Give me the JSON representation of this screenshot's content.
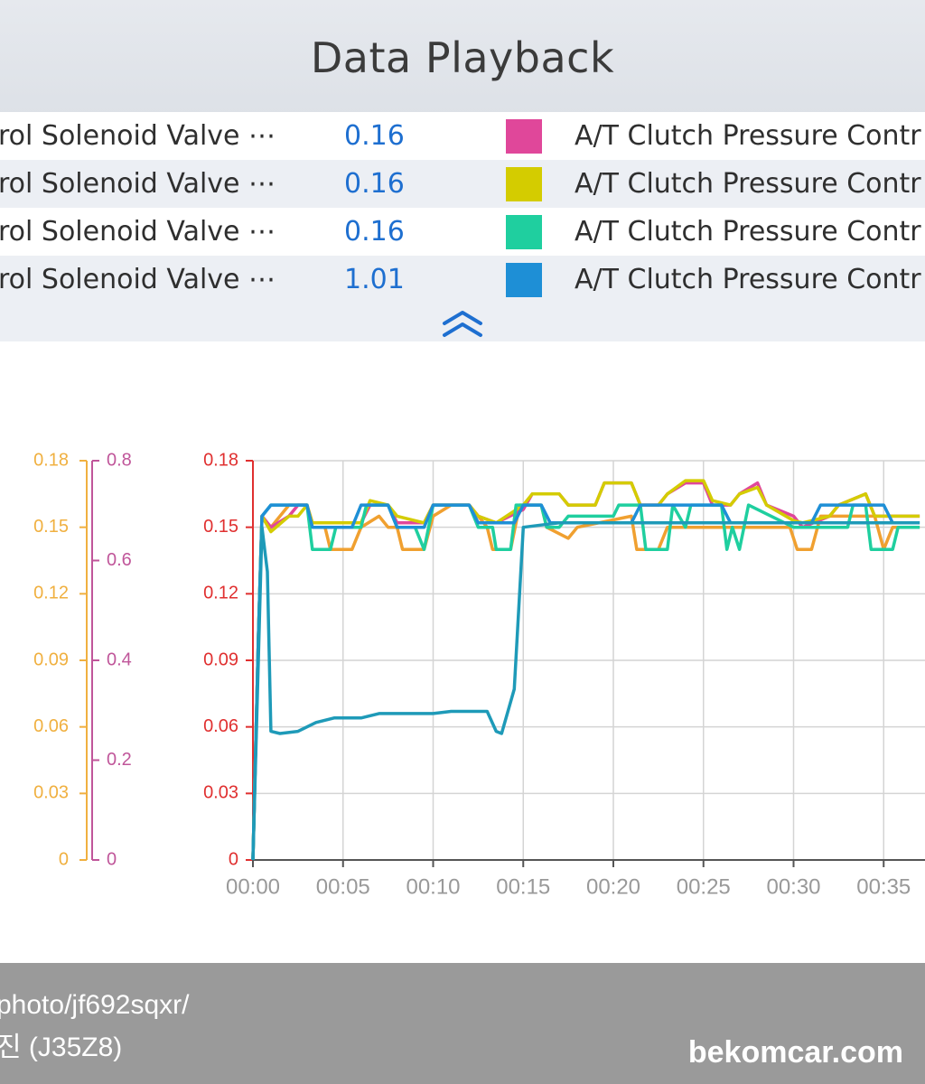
{
  "header": {
    "title": "Data Playback"
  },
  "rows": [
    {
      "name": "rol Solenoid Valve ⋯",
      "value": "0.16",
      "color": "#e0479a",
      "label": "A/T Clutch Pressure Contr"
    },
    {
      "name": "rol Solenoid Valve ⋯",
      "value": "0.16",
      "color": "#d4cc00",
      "label": "A/T Clutch Pressure Contr"
    },
    {
      "name": "rol Solenoid Valve ⋯",
      "value": "0.16",
      "color": "#1fcf9f",
      "label": "A/T Clutch Pressure Contr"
    },
    {
      "name": "rol Solenoid Valve ⋯",
      "value": "1.01",
      "color": "#1e8fd6",
      "label": "A/T Clutch Pressure Contr"
    }
  ],
  "collapse": {
    "icon": "double-chevron-up-icon",
    "color": "#1e6fd0"
  },
  "chart_data": {
    "type": "line",
    "x_ticks": [
      "00:00",
      "00:05",
      "00:10",
      "00:15",
      "00:20",
      "00:25",
      "00:30",
      "00:35"
    ],
    "xlim": [
      0,
      37
    ],
    "axes": [
      {
        "color": "#f0b040",
        "ylim": [
          0,
          0.18
        ],
        "ticks": [
          "0",
          "0.03",
          "0.06",
          "0.09",
          "0.12",
          "0.15",
          "0.18"
        ]
      },
      {
        "color": "#c0569a",
        "ylim": [
          0,
          0.8
        ],
        "ticks": [
          "0",
          "0.2",
          "0.4",
          "0.6",
          "0.8"
        ]
      },
      {
        "color": "#e03030",
        "ylim": [
          0,
          0.18
        ],
        "ticks": [
          "0",
          "0.03",
          "0.06",
          "0.09",
          "0.12",
          "0.15",
          "0.18"
        ]
      }
    ],
    "series": [
      {
        "color": "#f0a030",
        "points": [
          [
            0,
            0
          ],
          [
            0.3,
            0.1
          ],
          [
            0.5,
            0.155
          ],
          [
            1,
            0.15
          ],
          [
            2,
            0.16
          ],
          [
            3,
            0.16
          ],
          [
            3.3,
            0.15
          ],
          [
            4,
            0.15
          ],
          [
            4.3,
            0.14
          ],
          [
            5.5,
            0.14
          ],
          [
            6,
            0.15
          ],
          [
            7,
            0.155
          ],
          [
            7.5,
            0.15
          ],
          [
            8,
            0.15
          ],
          [
            8.3,
            0.14
          ],
          [
            9.5,
            0.14
          ],
          [
            10,
            0.155
          ],
          [
            11,
            0.16
          ],
          [
            12,
            0.16
          ],
          [
            12.5,
            0.155
          ],
          [
            13,
            0.15
          ],
          [
            13.3,
            0.14
          ],
          [
            14.3,
            0.14
          ],
          [
            14.8,
            0.16
          ],
          [
            16,
            0.16
          ],
          [
            16.3,
            0.15
          ],
          [
            17.5,
            0.145
          ],
          [
            18,
            0.15
          ],
          [
            21,
            0.155
          ],
          [
            21.3,
            0.14
          ],
          [
            22.5,
            0.14
          ],
          [
            23,
            0.15
          ],
          [
            24,
            0.15
          ],
          [
            25,
            0.15
          ],
          [
            29.8,
            0.15
          ],
          [
            30.2,
            0.14
          ],
          [
            31,
            0.14
          ],
          [
            31.5,
            0.155
          ],
          [
            34.5,
            0.155
          ],
          [
            35,
            0.14
          ],
          [
            35.5,
            0.15
          ],
          [
            37,
            0.15
          ]
        ]
      },
      {
        "color": "#e0479a",
        "points": [
          [
            0,
            0
          ],
          [
            0.3,
            0.1
          ],
          [
            0.5,
            0.155
          ],
          [
            1,
            0.15
          ],
          [
            2,
            0.155
          ],
          [
            2.5,
            0.16
          ],
          [
            3,
            0.16
          ],
          [
            3.3,
            0.152
          ],
          [
            6,
            0.152
          ],
          [
            6.5,
            0.16
          ],
          [
            7.5,
            0.16
          ],
          [
            8,
            0.152
          ],
          [
            9.5,
            0.152
          ],
          [
            10,
            0.16
          ],
          [
            12,
            0.16
          ],
          [
            12.5,
            0.155
          ],
          [
            13.5,
            0.152
          ],
          [
            15,
            0.158
          ],
          [
            15.5,
            0.165
          ],
          [
            17,
            0.165
          ],
          [
            17.5,
            0.16
          ],
          [
            19,
            0.16
          ],
          [
            19.5,
            0.17
          ],
          [
            21,
            0.17
          ],
          [
            21.5,
            0.16
          ],
          [
            22.5,
            0.16
          ],
          [
            23,
            0.165
          ],
          [
            24,
            0.17
          ],
          [
            25,
            0.17
          ],
          [
            25.5,
            0.16
          ],
          [
            26.5,
            0.16
          ],
          [
            27,
            0.165
          ],
          [
            28,
            0.17
          ],
          [
            28.5,
            0.16
          ],
          [
            30,
            0.155
          ],
          [
            30.5,
            0.15
          ],
          [
            32,
            0.155
          ],
          [
            32.5,
            0.16
          ],
          [
            34,
            0.165
          ],
          [
            34.5,
            0.155
          ],
          [
            35.5,
            0.155
          ],
          [
            37,
            0.155
          ]
        ]
      },
      {
        "color": "#d4cc00",
        "points": [
          [
            0,
            0
          ],
          [
            0.3,
            0.1
          ],
          [
            0.5,
            0.155
          ],
          [
            1,
            0.148
          ],
          [
            2,
            0.155
          ],
          [
            2.5,
            0.155
          ],
          [
            3,
            0.16
          ],
          [
            3.3,
            0.152
          ],
          [
            6,
            0.152
          ],
          [
            6.5,
            0.162
          ],
          [
            7.5,
            0.16
          ],
          [
            8,
            0.155
          ],
          [
            9.5,
            0.152
          ],
          [
            10,
            0.16
          ],
          [
            12,
            0.16
          ],
          [
            12.5,
            0.155
          ],
          [
            13.5,
            0.152
          ],
          [
            15,
            0.16
          ],
          [
            15.5,
            0.165
          ],
          [
            17,
            0.165
          ],
          [
            17.5,
            0.16
          ],
          [
            19,
            0.16
          ],
          [
            19.5,
            0.17
          ],
          [
            21,
            0.17
          ],
          [
            21.5,
            0.16
          ],
          [
            22.5,
            0.16
          ],
          [
            23,
            0.165
          ],
          [
            24,
            0.171
          ],
          [
            25,
            0.171
          ],
          [
            25.5,
            0.162
          ],
          [
            26.5,
            0.16
          ],
          [
            27,
            0.165
          ],
          [
            28,
            0.168
          ],
          [
            28.5,
            0.16
          ],
          [
            30,
            0.153
          ],
          [
            30.5,
            0.152
          ],
          [
            32,
            0.155
          ],
          [
            32.5,
            0.16
          ],
          [
            34,
            0.165
          ],
          [
            34.5,
            0.155
          ],
          [
            35.5,
            0.155
          ],
          [
            37,
            0.155
          ]
        ]
      },
      {
        "color": "#1fcf9f",
        "points": [
          [
            0,
            0
          ],
          [
            0.3,
            0.1
          ],
          [
            0.5,
            0.155
          ],
          [
            1,
            0.16
          ],
          [
            3,
            0.16
          ],
          [
            3.3,
            0.14
          ],
          [
            4.3,
            0.14
          ],
          [
            4.6,
            0.15
          ],
          [
            6,
            0.15
          ],
          [
            6.3,
            0.16
          ],
          [
            7.5,
            0.16
          ],
          [
            8,
            0.15
          ],
          [
            9,
            0.15
          ],
          [
            9.5,
            0.14
          ],
          [
            10,
            0.16
          ],
          [
            12,
            0.16
          ],
          [
            12.5,
            0.15
          ],
          [
            13.3,
            0.15
          ],
          [
            13.5,
            0.14
          ],
          [
            14.3,
            0.14
          ],
          [
            14.6,
            0.16
          ],
          [
            16,
            0.16
          ],
          [
            16.3,
            0.15
          ],
          [
            17,
            0.15
          ],
          [
            17.5,
            0.155
          ],
          [
            20,
            0.155
          ],
          [
            20.3,
            0.16
          ],
          [
            21.5,
            0.16
          ],
          [
            21.8,
            0.14
          ],
          [
            23,
            0.14
          ],
          [
            23.3,
            0.16
          ],
          [
            24,
            0.15
          ],
          [
            24.3,
            0.16
          ],
          [
            26,
            0.16
          ],
          [
            26.3,
            0.14
          ],
          [
            26.6,
            0.15
          ],
          [
            27,
            0.14
          ],
          [
            27.5,
            0.16
          ],
          [
            30,
            0.15
          ],
          [
            33,
            0.15
          ],
          [
            33.3,
            0.16
          ],
          [
            34,
            0.16
          ],
          [
            34.3,
            0.14
          ],
          [
            35.5,
            0.14
          ],
          [
            35.8,
            0.15
          ],
          [
            37,
            0.15
          ]
        ]
      },
      {
        "color": "#1e8fd6",
        "points": [
          [
            0,
            0
          ],
          [
            0.3,
            0.1
          ],
          [
            0.5,
            0.155
          ],
          [
            1,
            0.16
          ],
          [
            3,
            0.16
          ],
          [
            3.3,
            0.15
          ],
          [
            5.5,
            0.15
          ],
          [
            6,
            0.16
          ],
          [
            7.5,
            0.16
          ],
          [
            8,
            0.15
          ],
          [
            9.5,
            0.15
          ],
          [
            10,
            0.16
          ],
          [
            12,
            0.16
          ],
          [
            12.5,
            0.152
          ],
          [
            14.5,
            0.152
          ],
          [
            15,
            0.16
          ],
          [
            16,
            0.16
          ],
          [
            16.5,
            0.152
          ],
          [
            21,
            0.152
          ],
          [
            21.5,
            0.16
          ],
          [
            26,
            0.16
          ],
          [
            26.5,
            0.152
          ],
          [
            31,
            0.152
          ],
          [
            31.5,
            0.16
          ],
          [
            35,
            0.16
          ],
          [
            35.5,
            0.152
          ],
          [
            37,
            0.152
          ]
        ]
      },
      {
        "color": "#1e9ab8",
        "points": [
          [
            0,
            0
          ],
          [
            0.2,
            0.06
          ],
          [
            0.5,
            0.15
          ],
          [
            0.8,
            0.13
          ],
          [
            1,
            0.058
          ],
          [
            1.5,
            0.057
          ],
          [
            2.5,
            0.058
          ],
          [
            3.5,
            0.062
          ],
          [
            4.5,
            0.064
          ],
          [
            6,
            0.064
          ],
          [
            7,
            0.066
          ],
          [
            10,
            0.066
          ],
          [
            11,
            0.067
          ],
          [
            13,
            0.067
          ],
          [
            13.5,
            0.058
          ],
          [
            13.8,
            0.057
          ],
          [
            14.5,
            0.077
          ],
          [
            15,
            0.15
          ],
          [
            16,
            0.151
          ],
          [
            17,
            0.152
          ],
          [
            20,
            0.152
          ],
          [
            37,
            0.152
          ]
        ]
      }
    ]
  },
  "footer": {
    "line1": "photo/jf692sqxr/",
    "line2": "진 (J35Z8)",
    "brand": "bekomcar.com"
  }
}
